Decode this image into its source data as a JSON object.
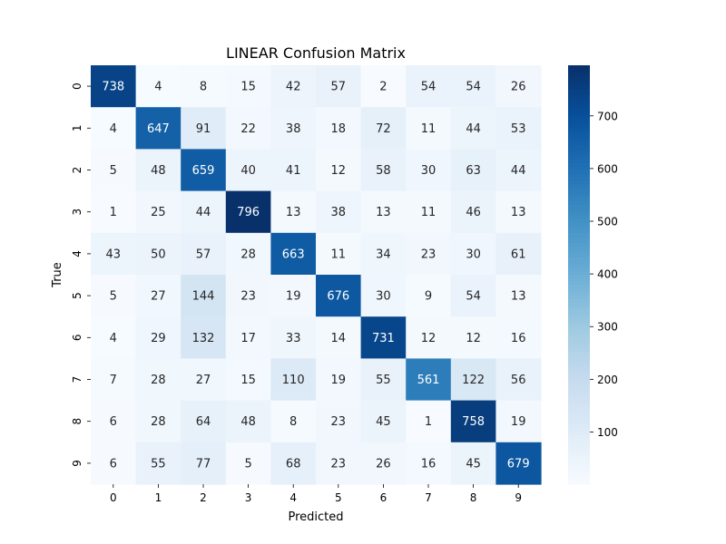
{
  "chart_data": {
    "type": "heatmap",
    "title": "LINEAR Confusion Matrix",
    "xlabel": "Predicted",
    "ylabel": "True",
    "x_categories": [
      "0",
      "1",
      "2",
      "3",
      "4",
      "5",
      "6",
      "7",
      "8",
      "9"
    ],
    "y_categories": [
      "0",
      "1",
      "2",
      "3",
      "4",
      "5",
      "6",
      "7",
      "8",
      "9"
    ],
    "matrix": [
      [
        738,
        4,
        8,
        15,
        42,
        57,
        2,
        54,
        54,
        26
      ],
      [
        4,
        647,
        91,
        22,
        38,
        18,
        72,
        11,
        44,
        53
      ],
      [
        5,
        48,
        659,
        40,
        41,
        12,
        58,
        30,
        63,
        44
      ],
      [
        1,
        25,
        44,
        796,
        13,
        38,
        13,
        11,
        46,
        13
      ],
      [
        43,
        50,
        57,
        28,
        663,
        11,
        34,
        23,
        30,
        61
      ],
      [
        5,
        27,
        144,
        23,
        19,
        676,
        30,
        9,
        54,
        13
      ],
      [
        4,
        29,
        132,
        17,
        33,
        14,
        731,
        12,
        12,
        16
      ],
      [
        7,
        28,
        27,
        15,
        110,
        19,
        55,
        561,
        122,
        56
      ],
      [
        6,
        28,
        64,
        48,
        8,
        23,
        45,
        1,
        758,
        19
      ],
      [
        6,
        55,
        77,
        5,
        68,
        23,
        26,
        16,
        45,
        679
      ]
    ],
    "colorbar": {
      "cmap": "Blues",
      "vmin": 1,
      "vmax": 796,
      "ticks": [
        100,
        200,
        300,
        400,
        500,
        600,
        700
      ]
    }
  }
}
